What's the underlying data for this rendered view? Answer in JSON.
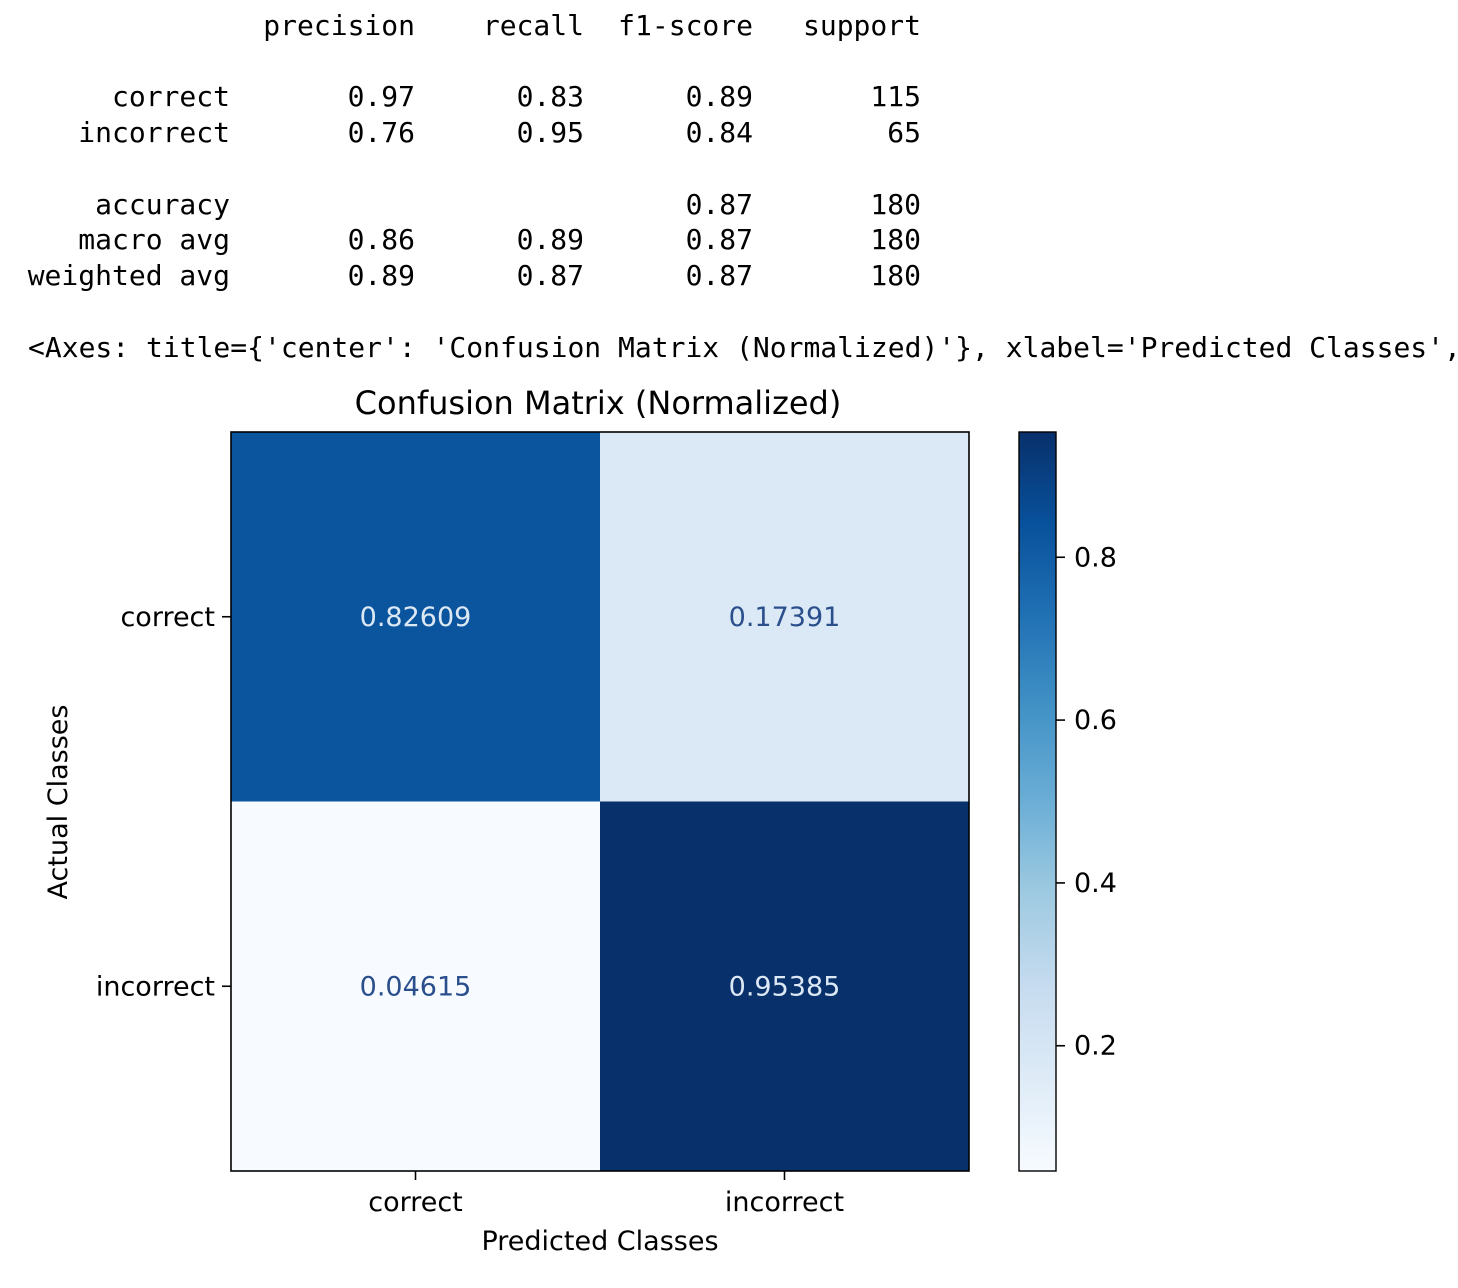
{
  "report": {
    "headers": [
      "precision",
      "recall",
      "f1-score",
      "support"
    ],
    "rows": [
      {
        "label": "correct",
        "precision": "0.97",
        "recall": "0.83",
        "f1": "0.89",
        "support": "115"
      },
      {
        "label": "incorrect",
        "precision": "0.76",
        "recall": "0.95",
        "f1": "0.84",
        "support": "65"
      },
      {
        "label": "accuracy",
        "precision": "",
        "recall": "",
        "f1": "0.87",
        "support": "180"
      },
      {
        "label": "macro avg",
        "precision": "0.86",
        "recall": "0.89",
        "f1": "0.87",
        "support": "180"
      },
      {
        "label": "weighted avg",
        "precision": "0.89",
        "recall": "0.87",
        "f1": "0.87",
        "support": "180"
      }
    ]
  },
  "axes_repr": "<Axes: title={'center': 'Confusion Matrix (Normalized)'}, xlabel='Predicted Classes',",
  "chart_data": {
    "type": "heatmap",
    "title": "Confusion Matrix (Normalized)",
    "xlabel": "Predicted Classes",
    "ylabel": "Actual Classes",
    "x_categories": [
      "correct",
      "incorrect"
    ],
    "y_categories": [
      "correct",
      "incorrect"
    ],
    "values": [
      [
        0.82609,
        0.17391
      ],
      [
        0.04615,
        0.95385
      ]
    ],
    "value_labels": [
      [
        "0.82609",
        "0.17391"
      ],
      [
        "0.04615",
        "0.95385"
      ]
    ],
    "colormap": "Blues",
    "colorbar": {
      "range": [
        0.04615,
        0.95385
      ],
      "ticks": [
        0.2,
        0.4,
        0.6,
        0.8
      ],
      "tick_labels": [
        "0.2",
        "0.4",
        "0.6",
        "0.8"
      ]
    },
    "grid": false
  }
}
